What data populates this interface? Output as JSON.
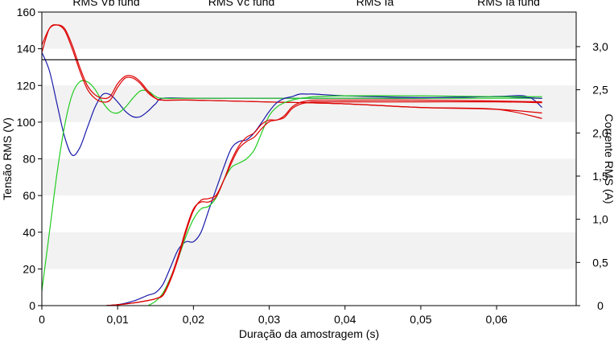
{
  "chart_data": {
    "type": "line",
    "title": "",
    "xlabel": "Duração da amostragem (s)",
    "ylabel_left": "Tensão RMS (V)",
    "ylabel_right": "Corrente RMS (A)",
    "xlim": [
      0,
      0.0705
    ],
    "ylim_left": [
      0,
      160
    ],
    "ylim_right": [
      0,
      3.4
    ],
    "x_ticks": [
      "0",
      "0,01",
      "0,02",
      "0,03",
      "0,04",
      "0,05",
      "0,06"
    ],
    "y_ticks_left": [
      "0",
      "20",
      "40",
      "60",
      "80",
      "100",
      "120",
      "140",
      "160"
    ],
    "y_ticks_right": [
      "0",
      "0,5",
      "1,0",
      "1,5",
      "2,0",
      "2,5",
      "3,0"
    ],
    "legend_labels": [
      "RMS Vb fund",
      "RMS Vc fund",
      "RMS Ia",
      "RMS Ia fund"
    ],
    "legend_position": "top",
    "grid": "horizontal bands",
    "colors": {
      "blue": "#1a1aaa",
      "green": "#22cc22",
      "red": "#dd0000",
      "black": "#000000"
    },
    "series": [
      {
        "color": "blue",
        "axis": "left",
        "x": [
          0,
          0.001,
          0.002,
          0.003,
          0.004,
          0.005,
          0.006,
          0.007,
          0.008,
          0.009,
          0.01,
          0.011,
          0.012,
          0.013,
          0.014,
          0.015,
          0.016,
          0.02,
          0.03,
          0.04,
          0.05,
          0.06,
          0.064,
          0.066
        ],
        "y": [
          138,
          128,
          110,
          92,
          82,
          86,
          97,
          108,
          115,
          115,
          111,
          106,
          103,
          103,
          106,
          110,
          113,
          113,
          113,
          113,
          113,
          114,
          114,
          108
        ]
      },
      {
        "color": "green",
        "axis": "left",
        "x": [
          0,
          0.001,
          0.002,
          0.003,
          0.004,
          0.005,
          0.006,
          0.007,
          0.008,
          0.009,
          0.01,
          0.011,
          0.012,
          0.013,
          0.014,
          0.015,
          0.016,
          0.02,
          0.03,
          0.04,
          0.05,
          0.06,
          0.066
        ],
        "y": [
          8,
          40,
          72,
          98,
          115,
          122,
          122,
          118,
          111,
          106,
          105,
          108,
          113,
          117,
          117,
          114,
          113,
          113,
          113,
          113,
          113,
          113,
          113
        ]
      },
      {
        "color": "red",
        "axis": "left",
        "x": [
          0,
          0.001,
          0.002,
          0.003,
          0.004,
          0.005,
          0.006,
          0.007,
          0.008,
          0.009,
          0.01,
          0.011,
          0.012,
          0.013,
          0.014,
          0.015,
          0.016,
          0.02,
          0.03,
          0.04,
          0.05,
          0.06,
          0.066
        ],
        "y": [
          138,
          151,
          153,
          150,
          140,
          128,
          118,
          113,
          111,
          112,
          119,
          124,
          124,
          121,
          116,
          113,
          112,
          112,
          111,
          110,
          108,
          107,
          105
        ]
      },
      {
        "color": "red",
        "axis": "left",
        "x": [
          0,
          0.001,
          0.002,
          0.003,
          0.004,
          0.005,
          0.006,
          0.007,
          0.008,
          0.009,
          0.01,
          0.011,
          0.012,
          0.013,
          0.014,
          0.015,
          0.016,
          0.02,
          0.03,
          0.04,
          0.05,
          0.06,
          0.066
        ],
        "y": [
          142,
          151,
          153,
          151,
          142,
          130,
          120,
          115,
          113,
          114,
          121,
          125,
          125,
          122,
          117,
          113,
          112,
          112,
          111,
          110,
          108,
          107,
          102
        ]
      },
      {
        "color": "black",
        "axis": "left",
        "x": [
          0,
          0.0705
        ],
        "y": [
          134,
          134
        ]
      },
      {
        "color": "blue",
        "axis": "right",
        "x": [
          0.0085,
          0.01,
          0.012,
          0.014,
          0.015,
          0.016,
          0.017,
          0.018,
          0.019,
          0.02,
          0.021,
          0.022,
          0.023,
          0.024,
          0.025,
          0.026,
          0.027,
          0.028,
          0.029,
          0.03,
          0.031,
          0.032,
          0.033,
          0.034,
          0.035,
          0.036,
          0.04,
          0.05,
          0.06,
          0.066
        ],
        "y": [
          0.0,
          0.01,
          0.05,
          0.12,
          0.15,
          0.25,
          0.45,
          0.65,
          0.74,
          0.74,
          0.85,
          1.1,
          1.35,
          1.6,
          1.82,
          1.9,
          1.92,
          2.0,
          2.12,
          2.25,
          2.35,
          2.4,
          2.42,
          2.45,
          2.45,
          2.45,
          2.43,
          2.41,
          2.42,
          2.4
        ]
      },
      {
        "color": "green",
        "axis": "right",
        "x": [
          0.014,
          0.015,
          0.016,
          0.017,
          0.018,
          0.019,
          0.02,
          0.021,
          0.022,
          0.023,
          0.024,
          0.025,
          0.026,
          0.027,
          0.028,
          0.029,
          0.03,
          0.031,
          0.032,
          0.033,
          0.034,
          0.035,
          0.036,
          0.04,
          0.05,
          0.06,
          0.066
        ],
        "y": [
          0.0,
          0.05,
          0.15,
          0.33,
          0.55,
          0.8,
          1.0,
          1.12,
          1.15,
          1.25,
          1.45,
          1.6,
          1.65,
          1.7,
          1.8,
          2.0,
          2.2,
          2.3,
          2.35,
          2.38,
          2.4,
          2.41,
          2.42,
          2.43,
          2.43,
          2.42,
          2.42
        ]
      },
      {
        "color": "red",
        "axis": "right",
        "x": [
          0.0085,
          0.01,
          0.012,
          0.014,
          0.015,
          0.016,
          0.017,
          0.018,
          0.019,
          0.02,
          0.021,
          0.022,
          0.023,
          0.024,
          0.025,
          0.026,
          0.027,
          0.028,
          0.029,
          0.03,
          0.031,
          0.032,
          0.033,
          0.034,
          0.035,
          0.036,
          0.04,
          0.05,
          0.06,
          0.066
        ],
        "y": [
          0.0,
          0.01,
          0.03,
          0.06,
          0.08,
          0.12,
          0.3,
          0.55,
          0.85,
          1.1,
          1.22,
          1.24,
          1.28,
          1.45,
          1.65,
          1.82,
          1.9,
          1.95,
          2.05,
          2.13,
          2.15,
          2.18,
          2.28,
          2.33,
          2.35,
          2.36,
          2.36,
          2.36,
          2.36,
          2.35
        ]
      },
      {
        "color": "red",
        "axis": "right",
        "x": [
          0.0085,
          0.01,
          0.012,
          0.014,
          0.015,
          0.016,
          0.017,
          0.018,
          0.019,
          0.02,
          0.021,
          0.022,
          0.023,
          0.024,
          0.025,
          0.026,
          0.027,
          0.028,
          0.029,
          0.03,
          0.031,
          0.032,
          0.033,
          0.034,
          0.035,
          0.036,
          0.04,
          0.05,
          0.06,
          0.066
        ],
        "y": [
          0.0,
          0.01,
          0.03,
          0.06,
          0.08,
          0.13,
          0.32,
          0.58,
          0.88,
          1.12,
          1.2,
          1.2,
          1.26,
          1.45,
          1.68,
          1.85,
          1.95,
          2.0,
          2.1,
          2.15,
          2.15,
          2.2,
          2.3,
          2.35,
          2.37,
          2.38,
          2.38,
          2.38,
          2.37,
          2.36
        ]
      }
    ]
  }
}
